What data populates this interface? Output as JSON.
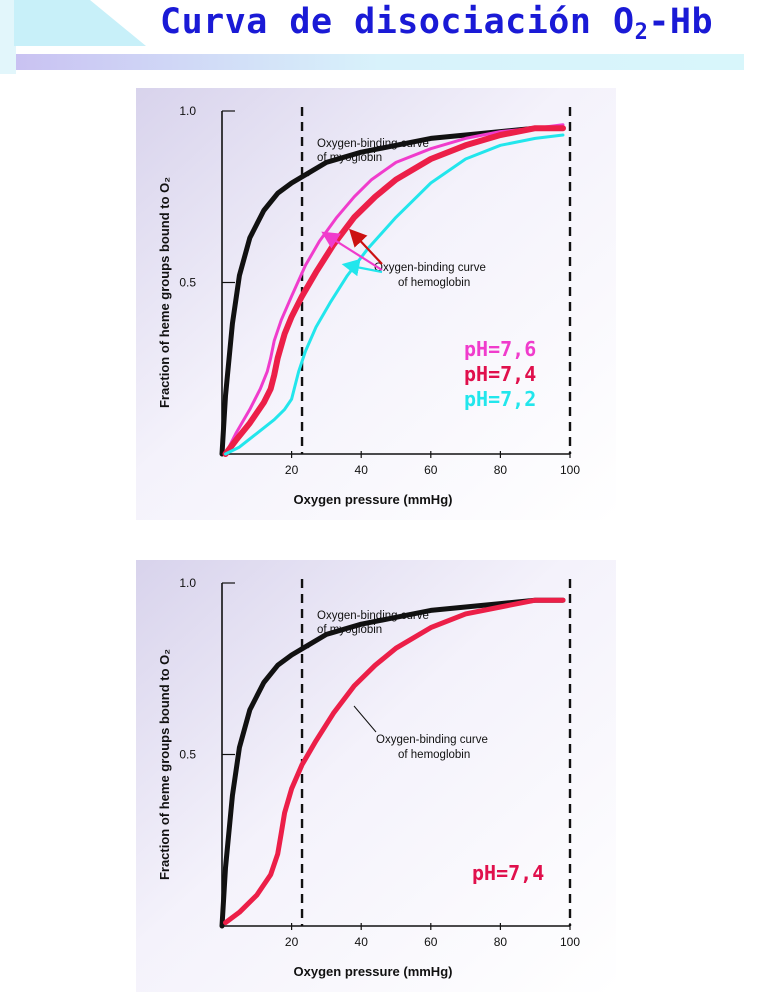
{
  "title": {
    "main": "Curva de disociación O",
    "sub": "2",
    "tail": "-Hb"
  },
  "colors": {
    "title": "#1a1ad6",
    "myoglobin": "#111111",
    "ph76": "#f03ccc",
    "ph74": "#ec1f48",
    "ph72": "#22e6ec",
    "panel_bg": "#e4e0f1",
    "arrow": "#cc1111",
    "ph74_label": "#e0104c"
  },
  "chart_data": [
    {
      "type": "line",
      "xlabel": "Oxygen pressure (mmHg)",
      "ylabel": "Fraction of heme groups bound to O₂",
      "xlim": [
        0,
        100
      ],
      "ylim": [
        0,
        1
      ],
      "xticks": [
        "20",
        "40",
        "60",
        "80",
        "100"
      ],
      "yticks": [
        "1.0",
        "0.5"
      ],
      "vlines": [
        23,
        100
      ],
      "annotations": {
        "myoglobin": [
          "Oxygen-binding curve",
          "of myoglobin"
        ],
        "hemoglobin": [
          "Oxygen-binding curve",
          "of hemoglobin"
        ]
      },
      "ph_labels": [
        "pH=7,6",
        "pH=7,4",
        "pH=7,2"
      ],
      "series": [
        {
          "key": "myoglobin",
          "color": "#111111",
          "width": 5,
          "points": [
            [
              0,
              0
            ],
            [
              1,
              0.17
            ],
            [
              3,
              0.38
            ],
            [
              5,
              0.52
            ],
            [
              8,
              0.63
            ],
            [
              12,
              0.71
            ],
            [
              16,
              0.76
            ],
            [
              20,
              0.79
            ],
            [
              25,
              0.82
            ],
            [
              30,
              0.85
            ],
            [
              40,
              0.88
            ],
            [
              50,
              0.9
            ],
            [
              60,
              0.92
            ],
            [
              70,
              0.93
            ],
            [
              80,
              0.94
            ],
            [
              90,
              0.95
            ],
            [
              98,
              0.95
            ]
          ]
        },
        {
          "key": "ph76",
          "color": "#f03ccc",
          "width": 3,
          "points": [
            [
              1,
              0
            ],
            [
              4,
              0.06
            ],
            [
              8,
              0.13
            ],
            [
              11,
              0.19
            ],
            [
              13,
              0.24
            ],
            [
              14,
              0.28
            ],
            [
              15,
              0.33
            ],
            [
              17,
              0.39
            ],
            [
              20,
              0.46
            ],
            [
              24,
              0.55
            ],
            [
              28,
              0.62
            ],
            [
              33,
              0.69
            ],
            [
              38,
              0.75
            ],
            [
              43,
              0.8
            ],
            [
              50,
              0.85
            ],
            [
              60,
              0.89
            ],
            [
              70,
              0.92
            ],
            [
              80,
              0.94
            ],
            [
              90,
              0.95
            ],
            [
              98,
              0.96
            ]
          ]
        },
        {
          "key": "ph74",
          "color": "#ec1f48",
          "width": 6,
          "points": [
            [
              1,
              0
            ],
            [
              4,
              0.04
            ],
            [
              8,
              0.09
            ],
            [
              12,
              0.15
            ],
            [
              14,
              0.19
            ],
            [
              15,
              0.23
            ],
            [
              16,
              0.28
            ],
            [
              18,
              0.35
            ],
            [
              20,
              0.4
            ],
            [
              23,
              0.46
            ],
            [
              27,
              0.53
            ],
            [
              32,
              0.61
            ],
            [
              38,
              0.69
            ],
            [
              44,
              0.75
            ],
            [
              50,
              0.8
            ],
            [
              60,
              0.86
            ],
            [
              70,
              0.9
            ],
            [
              80,
              0.93
            ],
            [
              90,
              0.95
            ],
            [
              98,
              0.95
            ]
          ]
        },
        {
          "key": "ph72",
          "color": "#22e6ec",
          "width": 3,
          "points": [
            [
              1,
              0
            ],
            [
              5,
              0.02
            ],
            [
              10,
              0.06
            ],
            [
              15,
              0.1
            ],
            [
              18,
              0.13
            ],
            [
              20,
              0.16
            ],
            [
              21,
              0.2
            ],
            [
              22,
              0.24
            ],
            [
              24,
              0.3
            ],
            [
              27,
              0.37
            ],
            [
              31,
              0.44
            ],
            [
              36,
              0.52
            ],
            [
              42,
              0.6
            ],
            [
              50,
              0.69
            ],
            [
              55,
              0.74
            ],
            [
              60,
              0.79
            ],
            [
              70,
              0.86
            ],
            [
              80,
              0.9
            ],
            [
              90,
              0.92
            ],
            [
              98,
              0.93
            ]
          ]
        }
      ]
    },
    {
      "type": "line",
      "xlabel": "Oxygen pressure (mmHg)",
      "ylabel": "Fraction of heme groups bound to O₂",
      "xlim": [
        0,
        100
      ],
      "ylim": [
        0,
        1
      ],
      "xticks": [
        "20",
        "40",
        "60",
        "80",
        "100"
      ],
      "yticks": [
        "1.0",
        "0.5"
      ],
      "vlines": [
        23,
        100
      ],
      "annotations": {
        "myoglobin": [
          "Oxygen-binding curve",
          "of myoglobin"
        ],
        "hemoglobin": [
          "Oxygen-binding curve",
          "of hemoglobin"
        ]
      },
      "ph_labels": [
        "pH=7,4"
      ],
      "series": [
        {
          "key": "myoglobin",
          "color": "#111111",
          "width": 5,
          "points": [
            [
              0,
              0
            ],
            [
              1,
              0.17
            ],
            [
              3,
              0.38
            ],
            [
              5,
              0.52
            ],
            [
              8,
              0.63
            ],
            [
              12,
              0.71
            ],
            [
              16,
              0.76
            ],
            [
              20,
              0.79
            ],
            [
              25,
              0.82
            ],
            [
              30,
              0.85
            ],
            [
              40,
              0.88
            ],
            [
              50,
              0.9
            ],
            [
              60,
              0.92
            ],
            [
              70,
              0.93
            ],
            [
              80,
              0.94
            ],
            [
              90,
              0.95
            ],
            [
              98,
              0.95
            ]
          ]
        },
        {
          "key": "ph74",
          "color": "#ec1f48",
          "width": 5,
          "points": [
            [
              1,
              0.01
            ],
            [
              5,
              0.04
            ],
            [
              10,
              0.09
            ],
            [
              14,
              0.15
            ],
            [
              16,
              0.21
            ],
            [
              17,
              0.27
            ],
            [
              18,
              0.33
            ],
            [
              20,
              0.4
            ],
            [
              23,
              0.47
            ],
            [
              27,
              0.54
            ],
            [
              32,
              0.62
            ],
            [
              38,
              0.7
            ],
            [
              44,
              0.76
            ],
            [
              50,
              0.81
            ],
            [
              60,
              0.87
            ],
            [
              70,
              0.91
            ],
            [
              80,
              0.93
            ],
            [
              90,
              0.95
            ],
            [
              98,
              0.95
            ]
          ]
        }
      ]
    }
  ]
}
